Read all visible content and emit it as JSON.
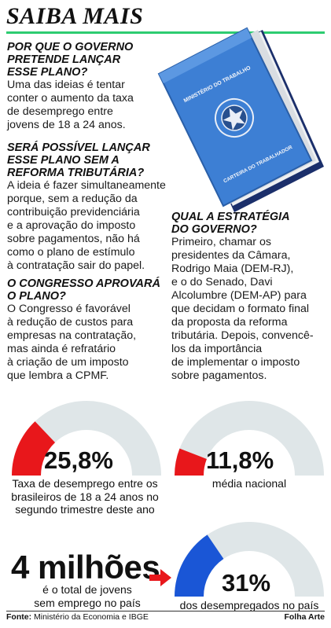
{
  "header": {
    "title": "SAIBA MAIS"
  },
  "book": {
    "line1": "MINISTÉRIO DO TRABALHO",
    "line2": "CARTEIRA DO TRABALHADOR"
  },
  "left_column": [
    {
      "question": [
        "POR QUE O GOVERNO",
        "PRETENDE LANÇAR",
        "ESSE PLANO?"
      ],
      "answer": [
        "Uma das ideias é tentar",
        "conter o aumento da taxa",
        "de desemprego entre",
        "jovens de 18 a 24 anos."
      ]
    },
    {
      "question": [
        "SERÁ POSSÍVEL LANÇAR",
        "ESSE PLANO SEM A",
        "REFORMA TRIBUTÁRIA?"
      ],
      "answer": [
        "A ideia é fazer simultaneamente",
        "porque, sem a redução da",
        "contribuição previdenciária",
        "e a aprovação do imposto",
        "sobre pagamentos, não há",
        "como o plano de estímulo",
        "à contratação sair do papel."
      ]
    },
    {
      "question": [
        "O CONGRESSO APROVARÁ",
        "O PLANO?"
      ],
      "answer": [
        "O Congresso é favorável",
        "à redução de custos para",
        "empresas na contratação,",
        "mas ainda é refratário",
        "à criação de um imposto",
        "que lembra a CPMF."
      ]
    }
  ],
  "right_column": {
    "question": [
      "QUAL A ESTRATÉGIA",
      "DO GOVERNO?"
    ],
    "answer": [
      "Primeiro, chamar os",
      "presidentes da Câmara,",
      "Rodrigo Maia (DEM-RJ),",
      "e o do Senado, Davi",
      "Alcolumbre (DEM-AP) para",
      "que decidam o formato final",
      "da proposta da reforma",
      "tributária. Depois, convencê-",
      "los da importância",
      "de implementar o imposto",
      "sobre pagamentos."
    ]
  },
  "gauges": [
    {
      "value_label": "25,8%",
      "value": 25.8,
      "fill_color": "#e8171b",
      "caption": [
        "Taxa de desemprego entre os",
        "brasileiros de 18 a 24 anos no",
        "segundo trimestre deste ano"
      ]
    },
    {
      "value_label": "11,8%",
      "value": 11.8,
      "fill_color": "#e8171b",
      "caption": [
        "média nacional"
      ]
    },
    {
      "value_label": "31%",
      "value": 31,
      "fill_color": "#1a56d6",
      "caption": [
        "dos desempregados no país"
      ]
    }
  ],
  "gauge_track_color": "#dfe6e8",
  "stat": {
    "big": "4 milhões",
    "caption": [
      "é o total de jovens",
      "sem emprego no país"
    ]
  },
  "footer": {
    "source_label": "Fonte:",
    "source": "Ministério da Economia e IBGE",
    "credit": "Folha Arte"
  }
}
